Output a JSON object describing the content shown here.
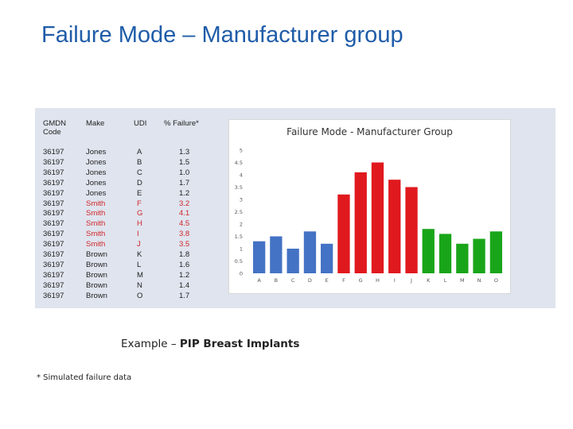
{
  "slide_title": "Failure Mode – Manufacturer group",
  "table": {
    "headers": {
      "gmdn": "GMDN Code",
      "make": "Make",
      "udi": "UDI",
      "failure": "% Failure*"
    },
    "rows": [
      {
        "gmdn": "36197",
        "make": "Jones",
        "udi": "A",
        "failure": "1.3"
      },
      {
        "gmdn": "36197",
        "make": "Jones",
        "udi": "B",
        "failure": "1.5"
      },
      {
        "gmdn": "36197",
        "make": "Jones",
        "udi": "C",
        "failure": "1.0"
      },
      {
        "gmdn": "36197",
        "make": "Jones",
        "udi": "D",
        "failure": "1.7"
      },
      {
        "gmdn": "36197",
        "make": "Jones",
        "udi": "E",
        "failure": "1.2"
      },
      {
        "gmdn": "36197",
        "make": "Smith",
        "udi": "F",
        "failure": "3.2"
      },
      {
        "gmdn": "36197",
        "make": "Smith",
        "udi": "G",
        "failure": "4.1"
      },
      {
        "gmdn": "36197",
        "make": "Smith",
        "udi": "H",
        "failure": "4.5"
      },
      {
        "gmdn": "36197",
        "make": "Smith",
        "udi": "I",
        "failure": "3.8"
      },
      {
        "gmdn": "36197",
        "make": "Smith",
        "udi": "J",
        "failure": "3.5"
      },
      {
        "gmdn": "36197",
        "make": "Brown",
        "udi": "K",
        "failure": "1.8"
      },
      {
        "gmdn": "36197",
        "make": "Brown",
        "udi": "L",
        "failure": "1.6"
      },
      {
        "gmdn": "36197",
        "make": "Brown",
        "udi": "M",
        "failure": "1.2"
      },
      {
        "gmdn": "36197",
        "make": "Brown",
        "udi": "N",
        "failure": "1.4"
      },
      {
        "gmdn": "36197",
        "make": "Brown",
        "udi": "O",
        "failure": "1.7"
      }
    ]
  },
  "chart_data": {
    "type": "bar",
    "title": "Failure Mode - Manufacturer Group",
    "xlabel": "",
    "ylabel": "",
    "categories": [
      "A",
      "B",
      "C",
      "D",
      "E",
      "F",
      "G",
      "H",
      "I",
      "J",
      "K",
      "L",
      "M",
      "N",
      "O"
    ],
    "values": [
      1.3,
      1.5,
      1.0,
      1.7,
      1.2,
      3.2,
      4.1,
      4.5,
      3.8,
      3.5,
      1.8,
      1.6,
      1.2,
      1.4,
      1.7
    ],
    "bar_colors": [
      "#4472c4",
      "#4472c4",
      "#4472c4",
      "#4472c4",
      "#4472c4",
      "#e0191e",
      "#e0191e",
      "#e0191e",
      "#e0191e",
      "#e0191e",
      "#19a519",
      "#19a519",
      "#19a519",
      "#19a519",
      "#19a519"
    ],
    "ylim": [
      0,
      5
    ],
    "yticks": [
      "0",
      "0.5",
      "1",
      "1.5",
      "2",
      "2.5",
      "3",
      "3.5",
      "4",
      "4.5",
      "5"
    ],
    "grid": false,
    "legend": "none"
  },
  "caption": {
    "prefix": "Example – ",
    "bold": "PIP Breast Implants"
  },
  "footnote": "* Simulated failure data",
  "colors": {
    "title": "#1f5ca8",
    "panel": "#dfe4ee",
    "smith_text": "#d0262a"
  }
}
